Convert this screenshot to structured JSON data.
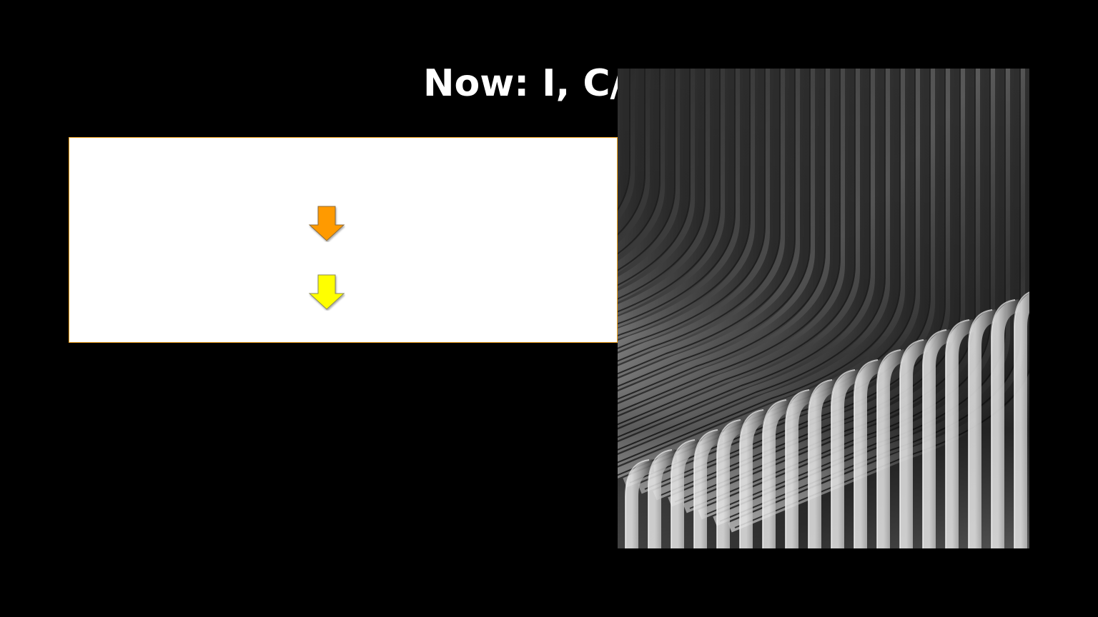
{
  "slide": {
    "title": "Now: I, C/",
    "background_color": "#000000"
  },
  "content_box": {
    "border_color": "#f5a623",
    "arrows": [
      {
        "icon": "down-arrow-icon",
        "color": "#ff9a00"
      },
      {
        "icon": "down-arrow-icon",
        "color": "#ffff00"
      }
    ]
  },
  "photo": {
    "subject": "curved-architecture-facade-photo",
    "palette": "grayscale"
  }
}
